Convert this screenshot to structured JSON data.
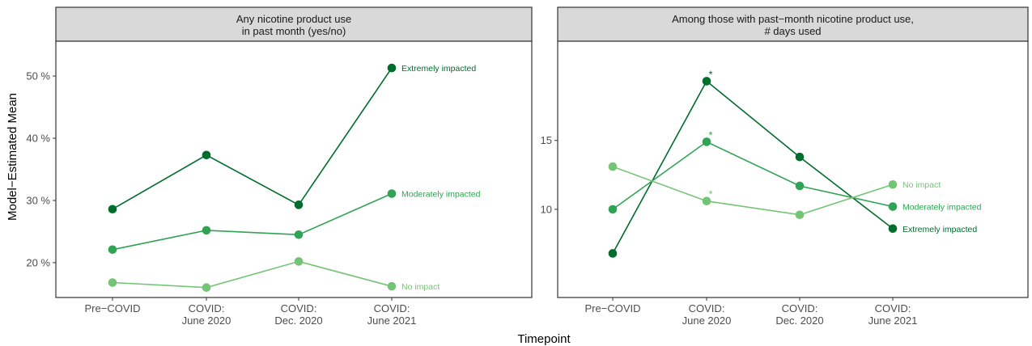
{
  "chart_data": [
    {
      "type": "line",
      "panel_title": [
        "Any nicotine product use",
        "in past month (yes/no)"
      ],
      "categories": [
        [
          "Pre−COVID"
        ],
        [
          "COVID:",
          "June 2020"
        ],
        [
          "COVID:",
          "Dec. 2020"
        ],
        [
          "COVID:",
          "June 2021"
        ]
      ],
      "y_tick_labels": [
        "20 %",
        "30 %",
        "40 %",
        "50 %"
      ],
      "y_tick_values": [
        20,
        30,
        40,
        50
      ],
      "ylim": [
        14.4,
        55.6
      ],
      "grid": false,
      "legend": "none",
      "series": [
        {
          "name": "Extremely impacted",
          "color": "#006d2c",
          "values": [
            28.6,
            37.3,
            29.3,
            51.3
          ],
          "significant": [
            false,
            false,
            false,
            false
          ]
        },
        {
          "name": "Moderately impacted",
          "color": "#31a354",
          "values": [
            22.1,
            25.2,
            24.5,
            31.1
          ],
          "significant": [
            false,
            false,
            false,
            false
          ]
        },
        {
          "name": "No impact",
          "color": "#74c476",
          "values": [
            16.8,
            16.0,
            20.2,
            16.2
          ],
          "significant": [
            false,
            false,
            false,
            false
          ]
        }
      ]
    },
    {
      "type": "line",
      "panel_title": [
        "Among those with past−month nicotine product use,",
        "# days used"
      ],
      "categories": [
        [
          "Pre−COVID"
        ],
        [
          "COVID:",
          "June 2020"
        ],
        [
          "COVID:",
          "Dec. 2020"
        ],
        [
          "COVID:",
          "June 2021"
        ]
      ],
      "y_tick_labels": [
        "10",
        "15"
      ],
      "y_tick_values": [
        10,
        15
      ],
      "ylim": [
        3.6,
        22.2
      ],
      "grid": false,
      "legend": "none",
      "series": [
        {
          "name": "Extremely impacted",
          "color": "#006d2c",
          "values": [
            6.8,
            19.3,
            13.8,
            8.6
          ],
          "significant": [
            false,
            true,
            false,
            false
          ]
        },
        {
          "name": "Moderately impacted",
          "color": "#31a354",
          "values": [
            10.0,
            14.9,
            11.7,
            10.2
          ],
          "significant": [
            false,
            true,
            false,
            false
          ]
        },
        {
          "name": "No impact",
          "color": "#74c476",
          "values": [
            13.1,
            10.6,
            9.6,
            11.8
          ],
          "significant": [
            false,
            true,
            false,
            false
          ]
        }
      ]
    }
  ],
  "axes": {
    "ylabel": "Model−Estimated Mean",
    "xlabel": "Timepoint",
    "significance_marker": "*"
  }
}
